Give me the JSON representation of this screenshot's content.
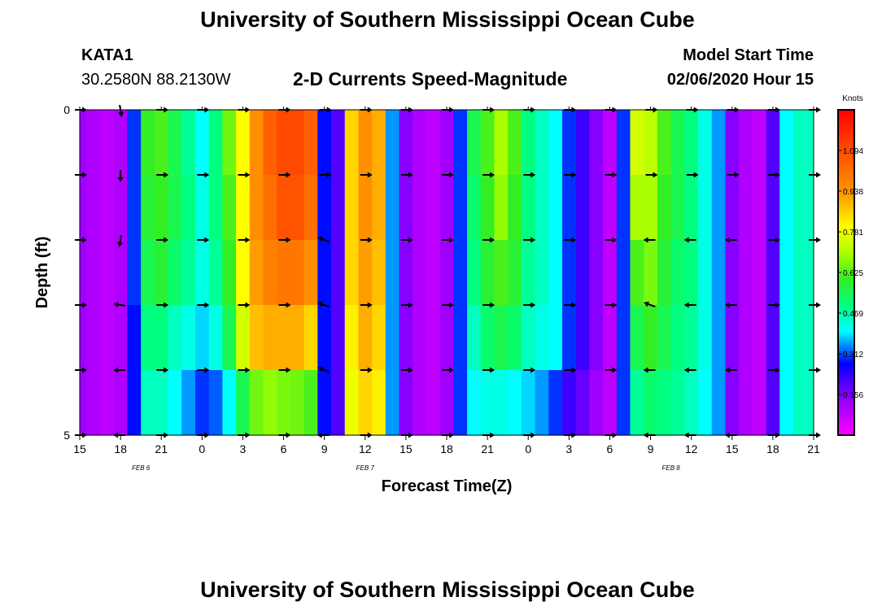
{
  "page": {
    "title_top": "University of Southern Mississippi Ocean Cube",
    "title_bottom": "University of Southern Mississippi Ocean Cube",
    "station": "KATA1",
    "coords": "30.2580N 88.2130W",
    "plot_title": "2-D Currents Speed-Magnitude",
    "model_label": "Model Start Time",
    "model_time": "02/06/2020 Hour 15"
  },
  "chart_data": {
    "type": "heatmap",
    "title": "2-D Currents Speed-Magnitude",
    "xlabel": "Forecast Time(Z)",
    "ylabel": "Depth (ft)",
    "x_ticks": [
      "15",
      "18",
      "21",
      "0",
      "3",
      "6",
      "9",
      "12",
      "15",
      "18",
      "21",
      "0",
      "3",
      "6",
      "9",
      "12",
      "15",
      "18",
      "21"
    ],
    "x_tick_hours": [
      0,
      3,
      6,
      9,
      12,
      15,
      18,
      21,
      24,
      27,
      30,
      33,
      36,
      39,
      42,
      45,
      48,
      51,
      54
    ],
    "date_labels": [
      {
        "text": "FEB 6",
        "hour": 4.5
      },
      {
        "text": "FEB 7",
        "hour": 21
      },
      {
        "text": "FEB 8",
        "hour": 43.5
      }
    ],
    "y_range": [
      0,
      5
    ],
    "y_labels": [
      "0",
      "5"
    ],
    "y_tick_depths": [
      0,
      1,
      2,
      3,
      4,
      5
    ],
    "colorbar": {
      "unit": "Knots",
      "range": [
        0,
        1.25
      ],
      "labels": [
        "1.094",
        "0.938",
        "0.781",
        "0.625",
        "0.469",
        "0.312",
        "0.156"
      ],
      "label_values": [
        1.094,
        0.938,
        0.781,
        0.625,
        0.469,
        0.312,
        0.156
      ]
    },
    "hours": [
      0,
      1,
      2,
      3,
      4,
      5,
      6,
      7,
      8,
      9,
      10,
      11,
      12,
      13,
      14,
      15,
      16,
      17,
      18,
      19,
      20,
      21,
      22,
      23,
      24,
      25,
      26,
      27,
      28,
      29,
      30,
      31,
      32,
      33,
      34,
      35,
      36,
      37,
      38,
      39,
      40,
      41,
      42,
      43,
      44,
      45,
      46,
      47,
      48,
      49,
      50,
      51,
      52,
      53,
      54
    ],
    "speed": [
      [
        0.12,
        0.1,
        0.08,
        0.1,
        0.3,
        0.6,
        0.62,
        0.55,
        0.48,
        0.4,
        0.5,
        0.65,
        0.8,
        0.95,
        1.05,
        1.1,
        1.1,
        1.05,
        0.28,
        0.2,
        0.85,
        0.95,
        0.9,
        0.35,
        0.15,
        0.1,
        0.08,
        0.12,
        0.3,
        0.55,
        0.62,
        0.7,
        0.62,
        0.5,
        0.45,
        0.4,
        0.3,
        0.22,
        0.15,
        0.08,
        0.3,
        0.75,
        0.72,
        0.62,
        0.55,
        0.5,
        0.42,
        0.35,
        0.15,
        0.1,
        0.08,
        0.2,
        0.4,
        0.45,
        0.45
      ],
      [
        0.12,
        0.1,
        0.08,
        0.1,
        0.3,
        0.58,
        0.6,
        0.55,
        0.5,
        0.42,
        0.5,
        0.62,
        0.8,
        0.95,
        1.02,
        1.08,
        1.08,
        1.02,
        0.28,
        0.2,
        0.85,
        0.95,
        0.9,
        0.35,
        0.15,
        0.1,
        0.08,
        0.12,
        0.3,
        0.52,
        0.6,
        0.68,
        0.6,
        0.5,
        0.45,
        0.4,
        0.3,
        0.22,
        0.15,
        0.08,
        0.3,
        0.7,
        0.7,
        0.6,
        0.55,
        0.5,
        0.42,
        0.35,
        0.15,
        0.1,
        0.08,
        0.2,
        0.4,
        0.45,
        0.45
      ],
      [
        0.12,
        0.1,
        0.08,
        0.1,
        0.3,
        0.55,
        0.58,
        0.52,
        0.48,
        0.42,
        0.48,
        0.6,
        0.8,
        0.92,
        0.98,
        1.0,
        1.0,
        0.95,
        0.28,
        0.2,
        0.85,
        0.92,
        0.88,
        0.35,
        0.15,
        0.1,
        0.08,
        0.12,
        0.3,
        0.5,
        0.58,
        0.62,
        0.58,
        0.48,
        0.45,
        0.4,
        0.3,
        0.22,
        0.15,
        0.08,
        0.3,
        0.62,
        0.66,
        0.58,
        0.52,
        0.5,
        0.42,
        0.35,
        0.15,
        0.1,
        0.08,
        0.2,
        0.4,
        0.45,
        0.45
      ],
      [
        0.12,
        0.1,
        0.08,
        0.1,
        0.28,
        0.5,
        0.5,
        0.45,
        0.42,
        0.38,
        0.42,
        0.55,
        0.75,
        0.88,
        0.9,
        0.9,
        0.9,
        0.85,
        0.28,
        0.2,
        0.82,
        0.9,
        0.85,
        0.35,
        0.15,
        0.1,
        0.08,
        0.12,
        0.3,
        0.45,
        0.52,
        0.55,
        0.52,
        0.45,
        0.42,
        0.4,
        0.3,
        0.22,
        0.15,
        0.08,
        0.3,
        0.55,
        0.6,
        0.55,
        0.5,
        0.48,
        0.42,
        0.35,
        0.15,
        0.1,
        0.08,
        0.2,
        0.4,
        0.45,
        0.45
      ],
      [
        0.12,
        0.1,
        0.08,
        0.1,
        0.28,
        0.45,
        0.45,
        0.4,
        0.35,
        0.3,
        0.32,
        0.4,
        0.55,
        0.65,
        0.68,
        0.66,
        0.65,
        0.62,
        0.28,
        0.2,
        0.78,
        0.85,
        0.82,
        0.35,
        0.15,
        0.1,
        0.08,
        0.12,
        0.3,
        0.4,
        0.42,
        0.42,
        0.4,
        0.38,
        0.35,
        0.3,
        0.22,
        0.18,
        0.12,
        0.08,
        0.3,
        0.48,
        0.52,
        0.5,
        0.48,
        0.45,
        0.4,
        0.35,
        0.15,
        0.1,
        0.08,
        0.2,
        0.4,
        0.45,
        0.45
      ]
    ],
    "arrows": {
      "hours": [
        0,
        3,
        6,
        9,
        12,
        15,
        18,
        21,
        24,
        27,
        30,
        33,
        36,
        39,
        42,
        45,
        48,
        51,
        54
      ],
      "depth_rows": [
        0,
        1,
        2,
        3,
        4,
        5
      ],
      "angles": [
        [
          0,
          80,
          0,
          0,
          0,
          0,
          0,
          0,
          0,
          0,
          0,
          0,
          0,
          0,
          0,
          0,
          0,
          0,
          0
        ],
        [
          0,
          90,
          0,
          0,
          0,
          0,
          0,
          0,
          0,
          0,
          0,
          0,
          0,
          0,
          0,
          0,
          0,
          0,
          0
        ],
        [
          0,
          100,
          0,
          0,
          0,
          0,
          200,
          0,
          0,
          0,
          0,
          0,
          0,
          0,
          180,
          180,
          180,
          0,
          0
        ],
        [
          0,
          190,
          0,
          0,
          0,
          0,
          200,
          0,
          0,
          0,
          0,
          0,
          0,
          0,
          200,
          180,
          180,
          0,
          0
        ],
        [
          0,
          180,
          0,
          0,
          0,
          0,
          200,
          0,
          0,
          0,
          0,
          0,
          0,
          0,
          180,
          180,
          180,
          0,
          0
        ],
        [
          0,
          180,
          0,
          0,
          0,
          0,
          180,
          0,
          0,
          0,
          0,
          0,
          0,
          0,
          180,
          180,
          180,
          0,
          0
        ]
      ]
    }
  }
}
